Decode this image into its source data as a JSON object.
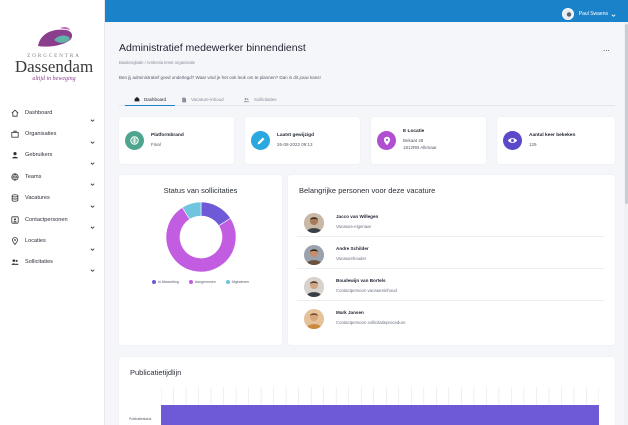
{
  "brand": {
    "small": "ZORGCENTRA",
    "name": "Dassendam",
    "tagline": "altijd in beweging",
    "colors": {
      "purple": "#8a3e8c",
      "teal": "#2f9c97",
      "dark": "#3a3a3a"
    }
  },
  "sidebar": {
    "items": [
      {
        "label": "Dashboard",
        "icon": "home-icon"
      },
      {
        "label": "Organisaties",
        "icon": "briefcase-icon"
      },
      {
        "label": "Gebruikers",
        "icon": "user-icon"
      },
      {
        "label": "Teams",
        "icon": "globe-icon"
      },
      {
        "label": "Vacatures",
        "icon": "database-icon"
      },
      {
        "label": "Contactpersonen",
        "icon": "contact-card-icon"
      },
      {
        "label": "Locaties",
        "icon": "map-pin-icon"
      },
      {
        "label": "Sollicitaties",
        "icon": "users-icon"
      }
    ]
  },
  "topbar": {
    "user_name": "Paul Swaens",
    "accent": "#1a82c8"
  },
  "header": {
    "title": "Administratief medewerker binnendienst",
    "more": "...",
    "breadcrumb": "Baakenglade / Ambenia kmet organisatie",
    "subtitle": "Ben jij administratief goed onderlegd? Waar vind je het ook leuk om te plannen? Dan is dit jouw kans!"
  },
  "tabs": [
    {
      "label": "Dashboard",
      "icon": "home-icon",
      "active": true
    },
    {
      "label": "Vacature-inhoud",
      "icon": "document-icon",
      "active": false
    },
    {
      "label": "Sollicitaties",
      "icon": "users-icon",
      "active": false
    }
  ],
  "stats": [
    {
      "title": "Platformbrand",
      "value": "Final",
      "value2": "",
      "icon": "platform-icon",
      "color": "#4ea58f"
    },
    {
      "title": "Laatst gewijzigd",
      "value": "26-08-2022 09:13",
      "value2": "",
      "icon": "pencil-icon",
      "color": "#2aa8df"
    },
    {
      "title": "E Locatie",
      "value": "Bekaat 48",
      "value2": "1812RB Alkmaar",
      "icon": "map-pin-icon",
      "color": "#b04fd0"
    },
    {
      "title": "Aantal keer bekeken",
      "value": "129",
      "value2": "",
      "icon": "eye-icon",
      "color": "#5a49c8"
    }
  ],
  "status_card": {
    "title": "Status van sollicitaties",
    "chart_data": {
      "type": "pie",
      "donut": true,
      "title": "Status van sollicitaties",
      "categories": [
        "In Afwachting",
        "Aangenomen",
        "Afgewezen"
      ],
      "values": [
        16,
        75,
        9
      ],
      "colors": [
        "#6e5ad6",
        "#c25ce0",
        "#6fc4de"
      ],
      "legend": "bottom"
    }
  },
  "people_card": {
    "title": "Belangrijke personen voor deze vacature",
    "people": [
      {
        "name": "Jacco van Willegen",
        "role": "Vacature-eigenaar"
      },
      {
        "name": "Andre Schilder",
        "role": "Vacaturehouder"
      },
      {
        "name": "Boudewijn van Bortels",
        "role": "Contactpersoon vacatureinhoud"
      },
      {
        "name": "Mark Jansen",
        "role": "Contactpersoon sollicitatieprocedure"
      }
    ]
  },
  "timeline_card": {
    "title": "Publicatietijdlijn",
    "row_label": "Publicatiestatus"
  }
}
